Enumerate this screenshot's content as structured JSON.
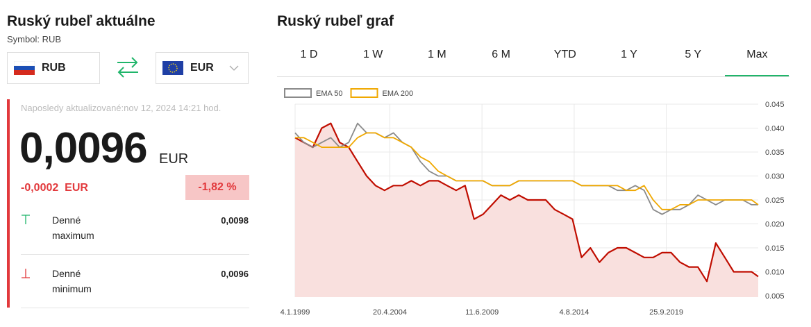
{
  "left": {
    "title": "Ruský rubeľ aktuálne",
    "symbol": "Symbol: RUB",
    "from_currency": "RUB",
    "to_currency": "EUR",
    "updated": "Naposledy aktualizované:nov 12, 2024 14:21 hod.",
    "price": "0,0096",
    "price_unit": "EUR",
    "change": "-0,0002",
    "change_unit": "EUR",
    "change_percent": "-1,82 %",
    "stats": [
      {
        "label": "Denné maximum",
        "value": "0,0098"
      },
      {
        "label": "Denné minimum",
        "value": "0,0096"
      }
    ]
  },
  "right": {
    "title": "Ruský rubeľ graf",
    "tabs": [
      "1 D",
      "1 W",
      "1 M",
      "6 M",
      "YTD",
      "1 Y",
      "5 Y",
      "Max"
    ],
    "active_tab": 7
  },
  "chart_data": {
    "type": "line",
    "x": [
      "1999-01-04",
      "1999-07-01",
      "2000-01-01",
      "2000-07-01",
      "2001-01-01",
      "2001-07-01",
      "2002-01-01",
      "2002-07-01",
      "2003-01-01",
      "2003-07-01",
      "2004-01-01",
      "2004-07-01",
      "2005-01-01",
      "2005-07-01",
      "2006-01-01",
      "2006-07-01",
      "2007-01-01",
      "2007-07-01",
      "2008-01-01",
      "2008-07-01",
      "2009-01-01",
      "2009-07-01",
      "2010-01-01",
      "2010-07-01",
      "2011-01-01",
      "2011-07-01",
      "2012-01-01",
      "2012-07-01",
      "2013-01-01",
      "2013-07-01",
      "2014-01-01",
      "2014-07-01",
      "2015-01-01",
      "2015-07-01",
      "2016-01-01",
      "2016-07-01",
      "2017-01-01",
      "2017-07-01",
      "2018-01-01",
      "2018-07-01",
      "2019-01-01",
      "2019-07-01",
      "2020-01-01",
      "2020-07-01",
      "2021-01-01",
      "2021-07-01",
      "2022-01-01",
      "2022-07-01",
      "2023-01-01",
      "2023-07-01",
      "2024-01-01",
      "2024-07-01",
      "2024-11-12"
    ],
    "series": [
      {
        "color": "#c00d00",
        "fill": "#f9e0de",
        "values": [
          0.038,
          0.037,
          0.036,
          0.04,
          0.041,
          0.037,
          0.036,
          0.033,
          0.03,
          0.028,
          0.027,
          0.028,
          0.028,
          0.029,
          0.028,
          0.029,
          0.029,
          0.028,
          0.027,
          0.028,
          0.021,
          0.022,
          0.024,
          0.026,
          0.025,
          0.026,
          0.025,
          0.025,
          0.025,
          0.023,
          0.022,
          0.021,
          0.013,
          0.015,
          0.012,
          0.014,
          0.015,
          0.015,
          0.014,
          0.013,
          0.013,
          0.014,
          0.014,
          0.012,
          0.011,
          0.011,
          0.008,
          0.016,
          0.013,
          0.01,
          0.01,
          0.01,
          0.009
        ]
      },
      {
        "name": "EMA 50",
        "color": "#8a8a8a",
        "values": [
          0.039,
          0.037,
          0.036,
          0.037,
          0.038,
          0.036,
          0.037,
          0.041,
          0.039,
          0.039,
          0.038,
          0.039,
          0.037,
          0.036,
          0.033,
          0.031,
          0.03,
          0.03,
          0.029,
          0.029,
          0.029,
          0.029,
          0.028,
          0.028,
          0.028,
          0.029,
          0.029,
          0.029,
          0.029,
          0.029,
          0.029,
          0.029,
          0.028,
          0.028,
          0.028,
          0.028,
          0.027,
          0.027,
          0.028,
          0.027,
          0.023,
          0.022,
          0.023,
          0.023,
          0.024,
          0.026,
          0.025,
          0.024,
          0.025,
          0.025,
          0.025,
          0.024,
          0.024
        ]
      },
      {
        "name": "EMA 200",
        "color": "#f0a800",
        "values": [
          0.038,
          0.038,
          0.037,
          0.036,
          0.036,
          0.036,
          0.036,
          0.038,
          0.039,
          0.039,
          0.038,
          0.038,
          0.037,
          0.036,
          0.034,
          0.033,
          0.031,
          0.03,
          0.029,
          0.029,
          0.029,
          0.029,
          0.028,
          0.028,
          0.028,
          0.029,
          0.029,
          0.029,
          0.029,
          0.029,
          0.029,
          0.029,
          0.028,
          0.028,
          0.028,
          0.028,
          0.028,
          0.027,
          0.027,
          0.028,
          0.025,
          0.023,
          0.023,
          0.024,
          0.024,
          0.025,
          0.025,
          0.025,
          0.025,
          0.025,
          0.025,
          0.025,
          0.024
        ]
      }
    ],
    "xlim": [
      "1999-01-04",
      "2024-11-12"
    ],
    "xticks": [
      {
        "value": "1999-01-04",
        "label": "4.1.1999"
      },
      {
        "value": "2004-04-20",
        "label": "20.4.2004"
      },
      {
        "value": "2009-06-11",
        "label": "11.6.2009"
      },
      {
        "value": "2014-08-04",
        "label": "4.8.2014"
      },
      {
        "value": "2019-09-25",
        "label": "25.9.2019"
      }
    ],
    "ylim": [
      0.005,
      0.045
    ],
    "yticks": [
      0.045,
      {
        "value": 0.04,
        "label": "0.040"
      },
      0.035,
      {
        "value": 0.03,
        "label": "0.030"
      },
      0.025,
      {
        "value": 0.02,
        "label": "0.020"
      },
      0.015,
      {
        "value": 0.01,
        "label": "0.010"
      },
      0.005
    ],
    "grid": true,
    "legend": "top-left"
  }
}
